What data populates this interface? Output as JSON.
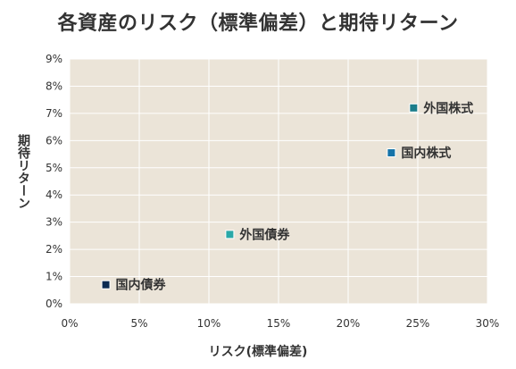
{
  "chart_data": {
    "type": "scatter",
    "title": "各資産のリスク（標準偏差）と期待リターン",
    "xlabel": "リスク(標準偏差)",
    "ylabel": "期待リターン",
    "xlim": [
      0,
      30
    ],
    "ylim": [
      0,
      9
    ],
    "x_ticks": [
      "0%",
      "5%",
      "10%",
      "15%",
      "20%",
      "25%",
      "30%"
    ],
    "y_ticks": [
      "0%",
      "1%",
      "2%",
      "3%",
      "4%",
      "5%",
      "6%",
      "7%",
      "8%",
      "9%"
    ],
    "grid": true,
    "points": [
      {
        "label": "国内債券",
        "x": 2.6,
        "y": 0.7,
        "color": "#0b2a52"
      },
      {
        "label": "外国債券",
        "x": 11.5,
        "y": 2.55,
        "color": "#29a8a8"
      },
      {
        "label": "国内株式",
        "x": 23.1,
        "y": 5.55,
        "color": "#1673a8"
      },
      {
        "label": "外国株式",
        "x": 24.7,
        "y": 7.2,
        "color": "#1b7d8a"
      }
    ],
    "colors": {
      "plot_bg": "#ebe4d8",
      "grid": "#ffffff",
      "axis_text": "#333333"
    }
  }
}
